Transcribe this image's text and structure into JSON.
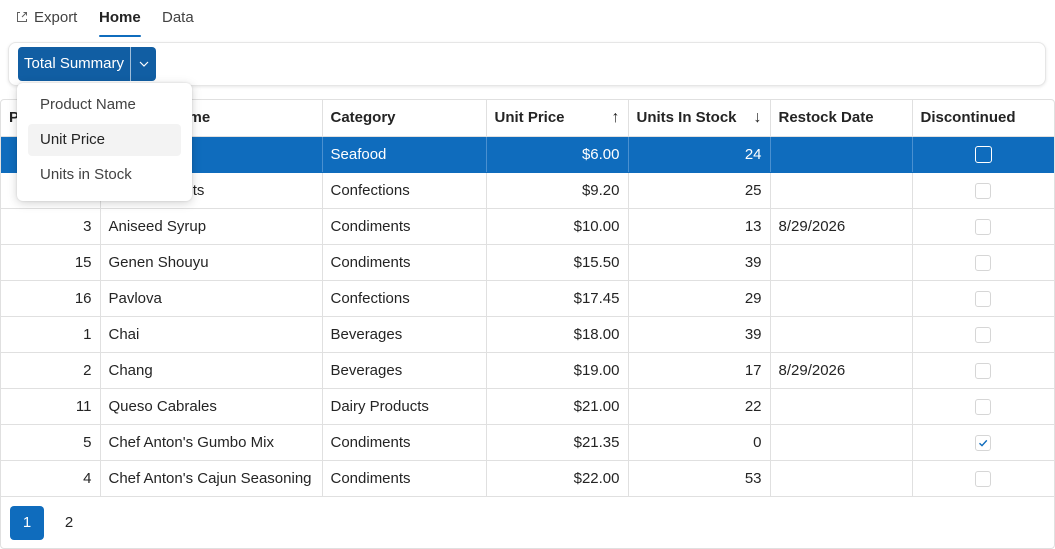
{
  "tabs": {
    "export_label": "Export",
    "home_label": "Home",
    "data_label": "Data"
  },
  "toolbar": {
    "summary_button_label": "Total Summary"
  },
  "summary_menu": {
    "items": [
      "Product Name",
      "Unit Price",
      "Units in Stock"
    ],
    "highlighted": "Unit Price"
  },
  "grid": {
    "columns": {
      "product_id": "P",
      "product_name": "Product Name",
      "category": "Category",
      "unit_price": "Unit Price",
      "units_in_stock": "Units In Stock",
      "restock_date": "Restock Date",
      "discontinued": "Discontinued"
    },
    "sort": {
      "unit_price": "ascending",
      "units_in_stock": "descending"
    },
    "rows": [
      {
        "id": "",
        "name": "",
        "category": "Seafood",
        "price": "$6.00",
        "stock": "24",
        "restock": "",
        "discontinued": false,
        "selected": true
      },
      {
        "id": "",
        "name": "colate Biscuits",
        "category": "Confections",
        "price": "$9.20",
        "stock": "25",
        "restock": "",
        "discontinued": false,
        "selected": false
      },
      {
        "id": "3",
        "name": "Aniseed Syrup",
        "category": "Condiments",
        "price": "$10.00",
        "stock": "13",
        "restock": "8/29/2026",
        "discontinued": false,
        "selected": false
      },
      {
        "id": "15",
        "name": "Genen Shouyu",
        "category": "Condiments",
        "price": "$15.50",
        "stock": "39",
        "restock": "",
        "discontinued": false,
        "selected": false
      },
      {
        "id": "16",
        "name": "Pavlova",
        "category": "Confections",
        "price": "$17.45",
        "stock": "29",
        "restock": "",
        "discontinued": false,
        "selected": false
      },
      {
        "id": "1",
        "name": "Chai",
        "category": "Beverages",
        "price": "$18.00",
        "stock": "39",
        "restock": "",
        "discontinued": false,
        "selected": false
      },
      {
        "id": "2",
        "name": "Chang",
        "category": "Beverages",
        "price": "$19.00",
        "stock": "17",
        "restock": "8/29/2026",
        "discontinued": false,
        "selected": false
      },
      {
        "id": "11",
        "name": "Queso Cabrales",
        "category": "Dairy Products",
        "price": "$21.00",
        "stock": "22",
        "restock": "",
        "discontinued": false,
        "selected": false
      },
      {
        "id": "5",
        "name": "Chef Anton's Gumbo Mix",
        "category": "Condiments",
        "price": "$21.35",
        "stock": "0",
        "restock": "",
        "discontinued": true,
        "selected": false
      },
      {
        "id": "4",
        "name": "Chef Anton's Cajun Seasoning",
        "category": "Condiments",
        "price": "$22.00",
        "stock": "53",
        "restock": "",
        "discontinued": false,
        "selected": false
      }
    ]
  },
  "pager": {
    "pages": [
      "1",
      "2"
    ],
    "current": "1"
  },
  "colors": {
    "accent": "#0f6cbd",
    "button": "#115ea3"
  },
  "icons": {
    "export": "export-icon",
    "dropdown": "chevron-down-icon",
    "sort_asc": "arrow-up-icon",
    "sort_desc": "arrow-down-icon",
    "check": "checkmark-icon"
  }
}
